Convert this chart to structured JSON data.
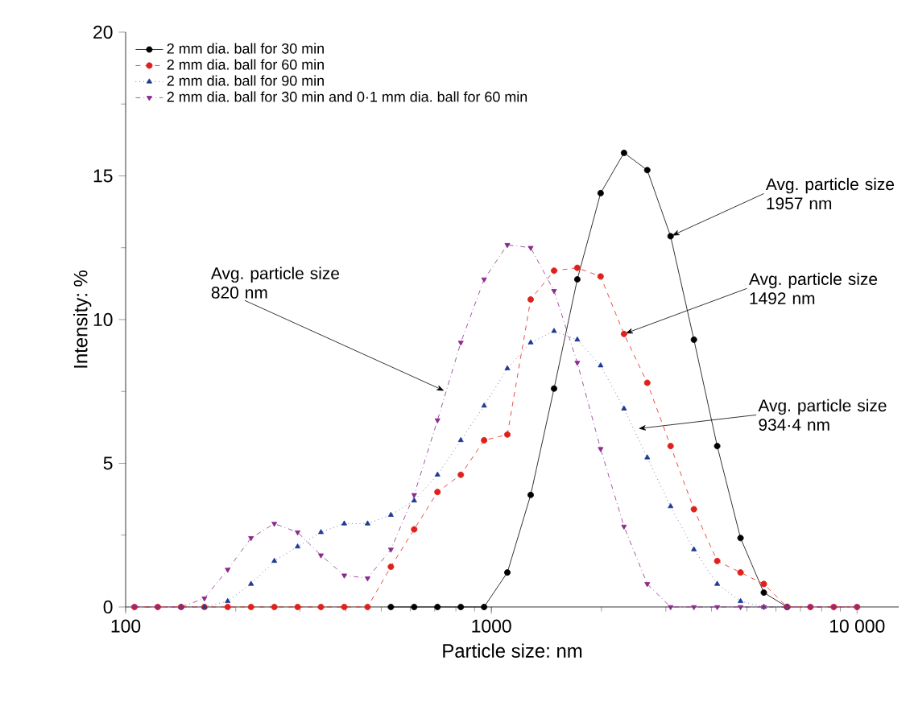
{
  "chart_data": {
    "type": "line",
    "xlabel": "Particle size: nm",
    "ylabel": "Intensity: %",
    "log": "x",
    "xlim": [
      100,
      13000
    ],
    "ylim": [
      0,
      20
    ],
    "xticks": [
      100,
      1000,
      {
        "value": 10000,
        "label": "10 000"
      }
    ],
    "yticks": [
      0,
      5,
      10,
      15,
      20
    ],
    "legend": "top left",
    "grid": false,
    "x": [
      105.7,
      122.4,
      141.8,
      164.2,
      190.1,
      220.2,
      255,
      295.3,
      342,
      396.1,
      458.7,
      531.2,
      615.1,
      712.4,
      825,
      955.4,
      1106,
      1281,
      1484,
      1718,
      1990,
      2305,
      2669,
      3091,
      3580,
      4145,
      4801,
      5560,
      6439,
      7456,
      8635,
      10000
    ],
    "series": [
      {
        "name": "2 mm dia. ball for 30 min",
        "color": "#000000",
        "marker": "circle",
        "line_style": "solid",
        "values": [
          null,
          null,
          null,
          null,
          null,
          null,
          null,
          null,
          null,
          null,
          null,
          0,
          0,
          0,
          0,
          0,
          1.2,
          3.9,
          7.6,
          11.4,
          14.4,
          15.8,
          15.2,
          12.9,
          9.3,
          5.6,
          2.4,
          0.5,
          0,
          null,
          null,
          null
        ]
      },
      {
        "name": "2 mm dia. ball for 60 min",
        "color": "#e0201b",
        "marker": "circle",
        "line_style": "dashed",
        "values": [
          0,
          0,
          0,
          0,
          0,
          0,
          0,
          0,
          0,
          0,
          0,
          1.4,
          2.7,
          4.0,
          4.6,
          5.8,
          6.0,
          10.7,
          11.7,
          11.8,
          11.5,
          9.5,
          7.8,
          5.6,
          3.4,
          1.6,
          1.2,
          0.8,
          0,
          0,
          0,
          0
        ]
      },
      {
        "name": "2 mm dia. ball for 90 min",
        "color": "#1f3a93",
        "marker": "triangle",
        "line_style": "dotted",
        "values": [
          null,
          null,
          0,
          0,
          0.2,
          0.8,
          1.6,
          2.1,
          2.6,
          2.9,
          2.9,
          3.2,
          3.7,
          4.6,
          5.8,
          7.0,
          8.3,
          9.2,
          9.6,
          9.3,
          8.4,
          6.9,
          5.2,
          3.5,
          2.0,
          0.8,
          0.2,
          0,
          0,
          null,
          null,
          null
        ]
      },
      {
        "name": "2 mm dia. ball for 30 min and 0·1 mm dia. ball for 60 min",
        "color": "#8b2a8b",
        "marker": "triangle down",
        "line_style": "dashdotted",
        "values": [
          0,
          0,
          0,
          0.3,
          1.3,
          2.4,
          2.9,
          2.6,
          1.8,
          1.1,
          1.0,
          2.0,
          3.9,
          6.5,
          9.2,
          11.4,
          12.6,
          12.5,
          11.0,
          8.5,
          5.5,
          2.8,
          0.8,
          0,
          0,
          0,
          0,
          0,
          0,
          0,
          0,
          0
        ]
      }
    ],
    "annotations": [
      {
        "text": "Avg. particle size 1957 nm",
        "x": 3091,
        "y": 12.9
      },
      {
        "text": "Avg. particle size 1492 nm",
        "x": 2305,
        "y": 9.5
      },
      {
        "text": "Avg. particle size 934·4 nm",
        "x": 2500,
        "y": 6.2
      },
      {
        "text": "Avg. particle size 820 nm",
        "x": 750,
        "y": 7.5
      }
    ]
  }
}
